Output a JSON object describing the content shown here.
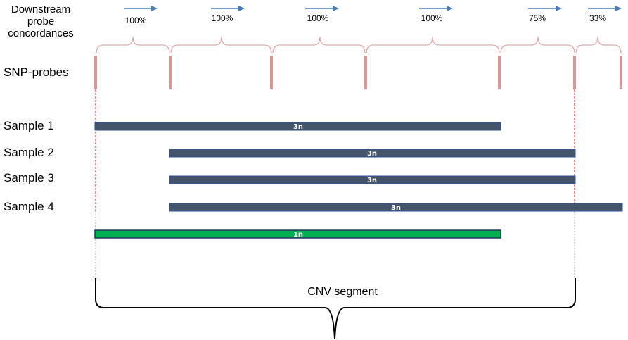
{
  "labels": {
    "concordance_title": "Downstream probe concordances",
    "snp_probes": "SNP-probes",
    "cnv_segment": "CNV segment"
  },
  "concordances": [
    "100%",
    "100%",
    "100%",
    "100%",
    "75%",
    "33%"
  ],
  "samples": [
    {
      "label": "Sample 1",
      "copy_number": "3n"
    },
    {
      "label": "Sample 2",
      "copy_number": "3n"
    },
    {
      "label": "Sample 3",
      "copy_number": "3n"
    },
    {
      "label": "Sample 4",
      "copy_number": "3n"
    }
  ],
  "segment_bar": {
    "copy_number": "1n"
  },
  "colors": {
    "sample_bar": "#44546a",
    "sample_bar_border": "#2f5597",
    "segment_bar": "#00b050",
    "segment_bar_border": "#1f3864",
    "probe": "#d99594",
    "brace_top": "#e6a6a6",
    "arrow": "#4a7ebb",
    "boundary_line": "#e02020"
  }
}
